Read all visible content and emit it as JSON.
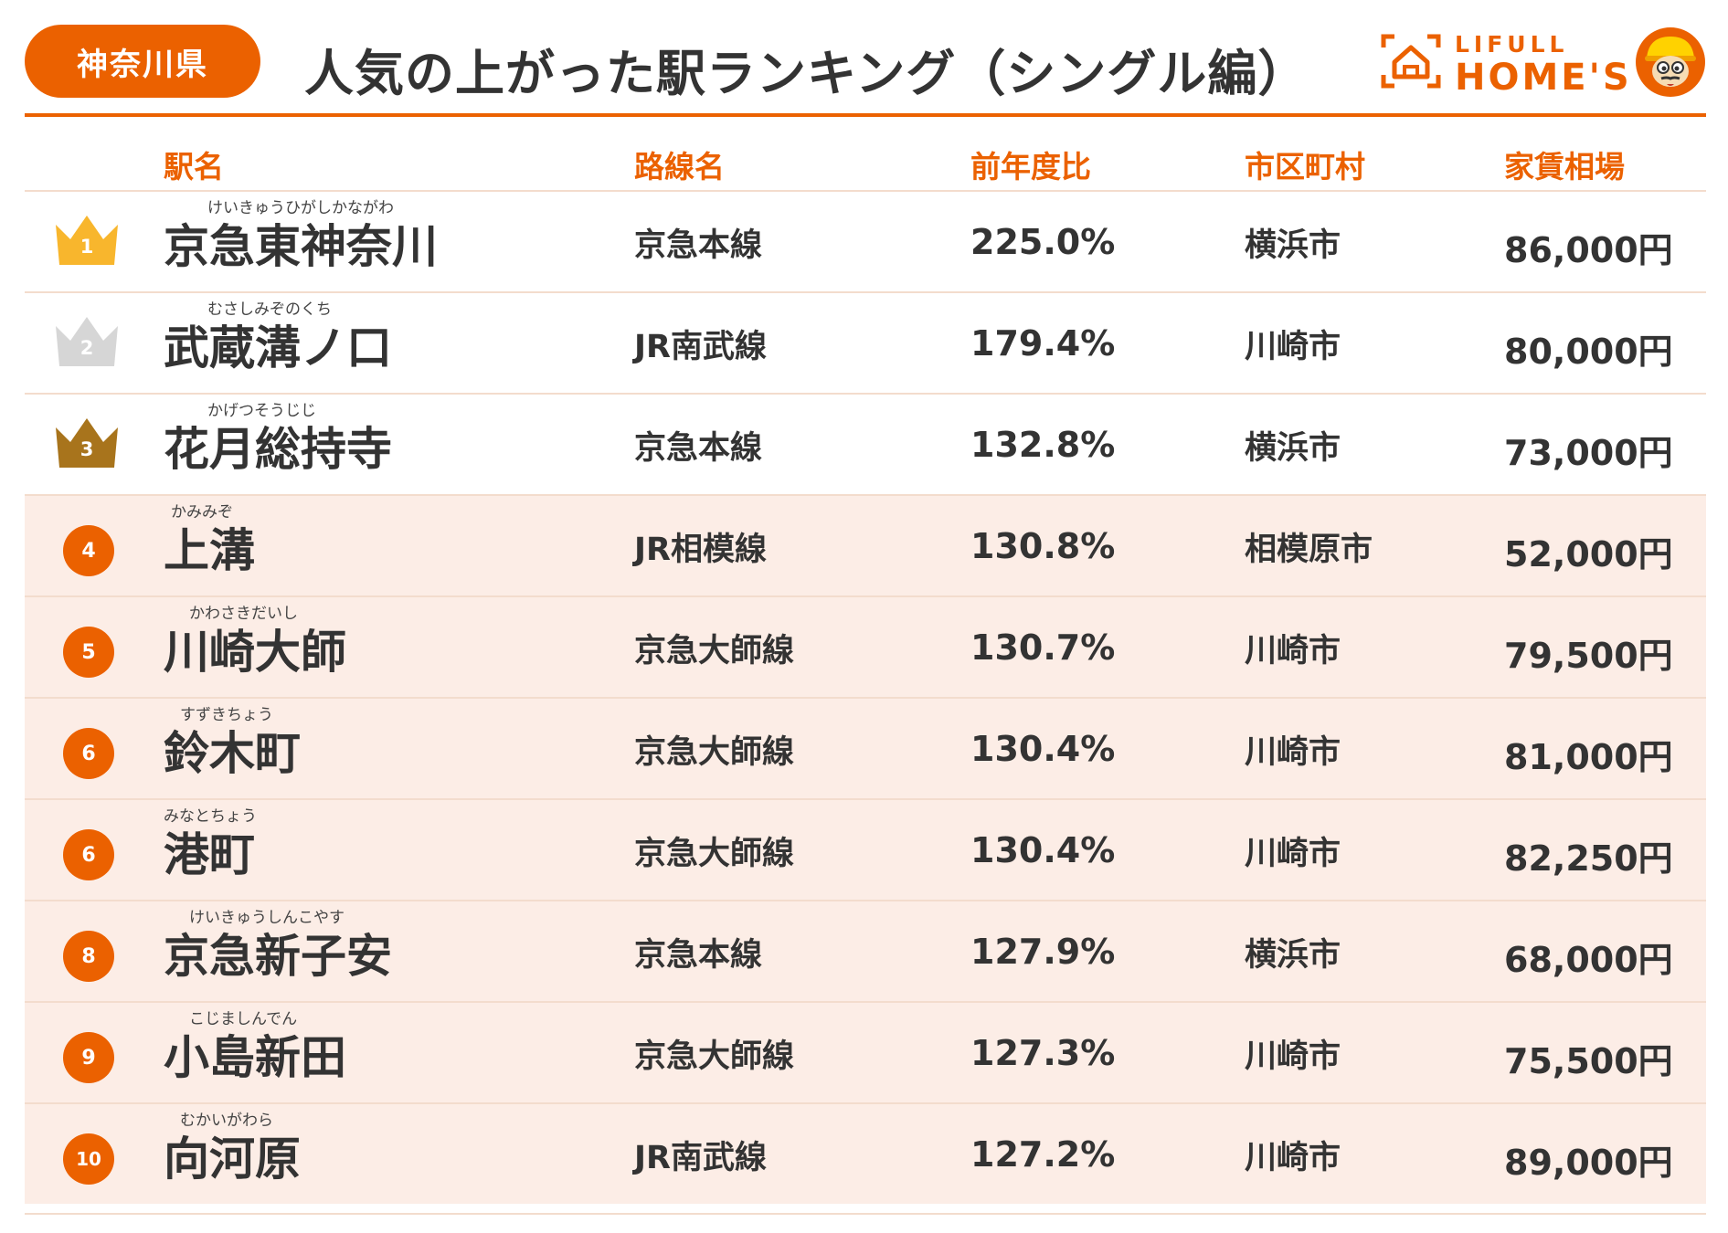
{
  "header": {
    "prefecture": "神奈川県",
    "title": "人気の上がった駅ランキング（シングル編）",
    "logo_sub": "LIFULL",
    "logo_main": "HOME'S"
  },
  "columns": {
    "station": "駅名",
    "line": "路線名",
    "ratio": "前年度比",
    "city": "市区町村",
    "rent": "家賃相場"
  },
  "colors": {
    "accent": "#eb6100",
    "gold": "#f8b62d",
    "silver": "#d6d6d6",
    "bronze": "#a8741c",
    "row_shade": "#fcede6"
  },
  "rows": [
    {
      "rank": "1",
      "ruby": "けいきゅうひがしかながわ",
      "station": "京急東神奈川",
      "line": "京急本線",
      "ratio": "225.0%",
      "city": "横浜市",
      "rent": "86,000円"
    },
    {
      "rank": "2",
      "ruby": "むさしみぞのくち",
      "station": "武蔵溝ノ口",
      "line": "JR南武線",
      "ratio": "179.4%",
      "city": "川崎市",
      "rent": "80,000円"
    },
    {
      "rank": "3",
      "ruby": "かげつそうじじ",
      "station": "花月総持寺",
      "line": "京急本線",
      "ratio": "132.8%",
      "city": "横浜市",
      "rent": "73,000円"
    },
    {
      "rank": "4",
      "ruby": "かみみぞ",
      "station": "上溝",
      "line": "JR相模線",
      "ratio": "130.8%",
      "city": "相模原市",
      "rent": "52,000円"
    },
    {
      "rank": "5",
      "ruby": "かわさきだいし",
      "station": "川崎大師",
      "line": "京急大師線",
      "ratio": "130.7%",
      "city": "川崎市",
      "rent": "79,500円"
    },
    {
      "rank": "6",
      "ruby": "すずきちょう",
      "station": "鈴木町",
      "line": "京急大師線",
      "ratio": "130.4%",
      "city": "川崎市",
      "rent": "81,000円"
    },
    {
      "rank": "6",
      "ruby": "みなとちょう",
      "station": "港町",
      "line": "京急大師線",
      "ratio": "130.4%",
      "city": "川崎市",
      "rent": "82,250円"
    },
    {
      "rank": "8",
      "ruby": "けいきゅうしんこやす",
      "station": "京急新子安",
      "line": "京急本線",
      "ratio": "127.9%",
      "city": "横浜市",
      "rent": "68,000円"
    },
    {
      "rank": "9",
      "ruby": "こじましんでん",
      "station": "小島新田",
      "line": "京急大師線",
      "ratio": "127.3%",
      "city": "川崎市",
      "rent": "75,500円"
    },
    {
      "rank": "10",
      "ruby": "むかいがわら",
      "station": "向河原",
      "line": "JR南武線",
      "ratio": "127.2%",
      "city": "川崎市",
      "rent": "89,000円"
    }
  ]
}
